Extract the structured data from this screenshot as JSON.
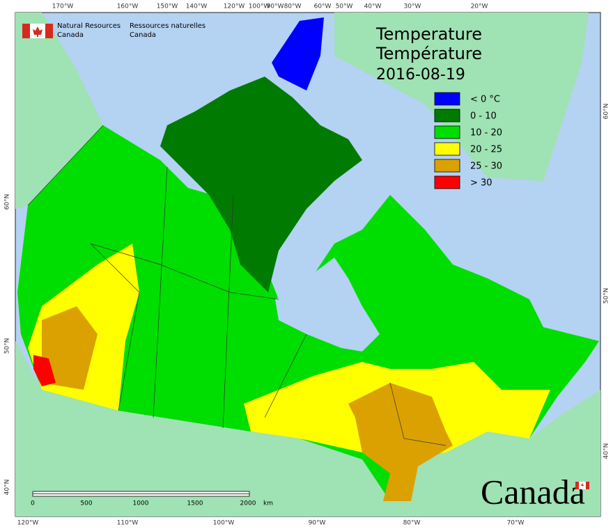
{
  "header": {
    "agency_en": [
      "Natural Resources",
      "Canada"
    ],
    "agency_fr": [
      "Ressources naturelles",
      "Canada"
    ]
  },
  "title": {
    "line1": "Temperature",
    "line2": "Température",
    "date": "2016-08-19"
  },
  "legend": [
    {
      "label": "< 0 °C",
      "color": "#0000ff"
    },
    {
      "label": "0 - 10",
      "color": "#007a00"
    },
    {
      "label": "10 - 20",
      "color": "#00dd00"
    },
    {
      "label": "20 - 25",
      "color": "#ffff00"
    },
    {
      "label": "25 - 30",
      "color": "#dba100"
    },
    {
      "label": "> 30",
      "color": "#ff0000"
    }
  ],
  "scale_bar": {
    "labels": [
      "0",
      "500",
      "1000",
      "1500",
      "2000"
    ],
    "unit": "km"
  },
  "graticule": {
    "top": [
      "170°W",
      "160°W",
      "150°W",
      "140°W",
      "120°W",
      "100°W",
      "90°W",
      "80°W",
      "60°W",
      "50°W",
      "40°W",
      "30°W",
      "20°W"
    ],
    "bottom": [
      "120°W",
      "110°W",
      "100°W",
      "90°W",
      "80°W",
      "70°W"
    ],
    "left": [
      "60°N",
      "50°N",
      "40°N"
    ],
    "right": [
      "60°N",
      "50°N",
      "40°N"
    ]
  },
  "wordmark": "Canada"
}
